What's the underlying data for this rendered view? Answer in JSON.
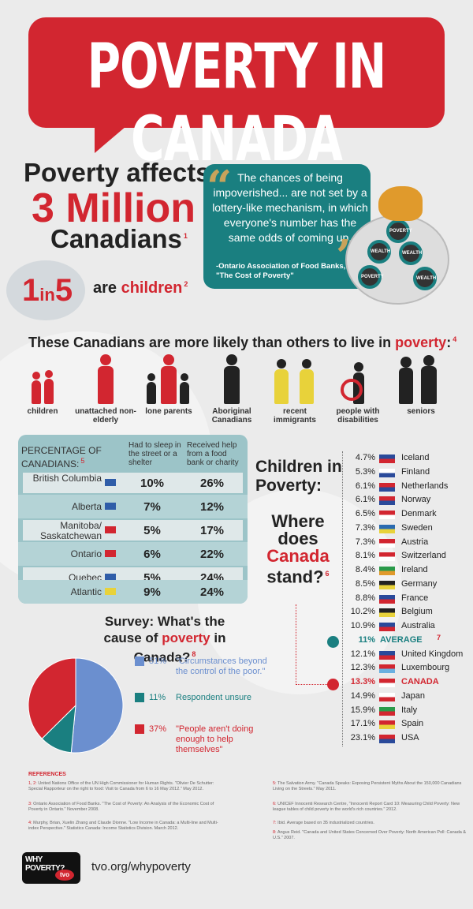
{
  "banner": {
    "title": "POVERTY IN CANADA"
  },
  "stats": {
    "line1": "Poverty affects",
    "big": "3 Million",
    "line3": "Canadians",
    "line3_sup": "1",
    "one_in": "1",
    "in_word": "in",
    "five": "5",
    "children_prefix": "are",
    "children_word": "children",
    "children_sup": "2"
  },
  "quote": {
    "text": "The chances of being impoverished... are not set by a lottery-like mechanism, in which everyone's number has the same odds of coming up.",
    "source": "-Ontario Association of Food Banks, \"The Cost of Poverty\"",
    "coins": [
      "POVERTY",
      "WEALTH",
      "WEALTH",
      "POVERTY",
      "WEALTH"
    ]
  },
  "groups": {
    "title_prefix": "These Canadians are more likely than others to live in",
    "title_word": "poverty",
    "title_sup": "4",
    "items": [
      {
        "label": "children"
      },
      {
        "label": "unattached non-elderly"
      },
      {
        "label": "lone parents"
      },
      {
        "label": "Aboriginal Canadians"
      },
      {
        "label": "recent immigrants"
      },
      {
        "label": "people with disabilities"
      },
      {
        "label": "seniors"
      }
    ]
  },
  "table": {
    "header_left": "PERCENTAGE OF CANADIANS:",
    "header_sup": "5",
    "col1": "Had to sleep in the street or a shelter",
    "col2": "Received help from a food bank or charity",
    "rows": [
      {
        "province": "British Columbia",
        "v1": "10%",
        "v2": "26%"
      },
      {
        "province": "Alberta",
        "v1": "7%",
        "v2": "12%"
      },
      {
        "province": "Manitoba/ Saskatchewan",
        "v1": "5%",
        "v2": "17%"
      },
      {
        "province": "Ontario",
        "v1": "6%",
        "v2": "22%"
      },
      {
        "province": "Quebec",
        "v1": "5%",
        "v2": "24%"
      },
      {
        "province": "Atlantic",
        "v1": "9%",
        "v2": "24%"
      }
    ]
  },
  "ranking": {
    "title": "Children in Poverty:",
    "q1": "Where",
    "q2": "does",
    "q3": "Canada",
    "q4": "stand?",
    "q_sup": "6",
    "rows": [
      {
        "pct": "4.7%",
        "country": "Iceland"
      },
      {
        "pct": "5.3%",
        "country": "Finland"
      },
      {
        "pct": "6.1%",
        "country": "Netherlands"
      },
      {
        "pct": "6.1%",
        "country": "Norway"
      },
      {
        "pct": "6.5%",
        "country": "Denmark"
      },
      {
        "pct": "7.3%",
        "country": "Sweden"
      },
      {
        "pct": "7.3%",
        "country": "Austria"
      },
      {
        "pct": "8.1%",
        "country": "Switzerland"
      },
      {
        "pct": "8.4%",
        "country": "Ireland"
      },
      {
        "pct": "8.5%",
        "country": "Germany"
      },
      {
        "pct": "8.8%",
        "country": "France"
      },
      {
        "pct": "10.2%",
        "country": "Belgium"
      },
      {
        "pct": "10.9%",
        "country": "Australia"
      },
      {
        "pct": "11%",
        "country": "AVERAGE",
        "sup": "7"
      },
      {
        "pct": "12.1%",
        "country": "United Kingdom"
      },
      {
        "pct": "12.3%",
        "country": "Luxembourg"
      },
      {
        "pct": "13.3%",
        "country": "CANADA"
      },
      {
        "pct": "14.9%",
        "country": "Japan"
      },
      {
        "pct": "15.9%",
        "country": "Italy"
      },
      {
        "pct": "17.1%",
        "country": "Spain"
      },
      {
        "pct": "23.1%",
        "country": "USA"
      }
    ]
  },
  "survey": {
    "title_line1": "Survey: What's the",
    "title_prefix": "cause of",
    "title_word": "poverty",
    "title_suffix": "in Canada?",
    "title_sup": "8",
    "colors": {
      "circumstances": "#6b8fcf",
      "unsure": "#1a7f80",
      "not_enough": "#d22630"
    },
    "items": [
      {
        "pct": "51%",
        "text": "\"Circumstances beyond the control of the poor.\""
      },
      {
        "pct": "11%",
        "text": "Respondent unsure"
      },
      {
        "pct": "37%",
        "text": "\"People aren't doing enough to help themselves\""
      }
    ]
  },
  "chart_data": {
    "type": "pie",
    "title": "Survey: What's the cause of poverty in Canada?",
    "categories": [
      "Circumstances beyond the control of the poor.",
      "Respondent unsure",
      "People aren't doing enough to help themselves"
    ],
    "values": [
      51,
      11,
      37
    ],
    "colors": [
      "#6b8fcf",
      "#1a7f80",
      "#d22630"
    ]
  },
  "references": {
    "heading": "REFERENCES",
    "left": [
      {
        "num": "1, 2:",
        "text": "United Nations Office of the UN High Commissioner for Human Rights. \"Olivier De Schutter: Special Rapporteur on the right to food: Visit to Canada from 6 to 16 May 2012.\" May 2012."
      },
      {
        "num": "3:",
        "text": "Ontario Association of Food Banks. \"The Cost of Poverty: An Analysis of the Economic Cost of Poverty in Ontario.\" November 2008."
      },
      {
        "num": "4:",
        "text": "Murphy, Brian, Xuelin Zhang and Claude Dionne. \"Low Income in Canada: a Multi-line and Multi-index Perspective.\" Statistics Canada: Income Statistics Division. March 2012."
      }
    ],
    "right": [
      {
        "num": "5:",
        "text": "The Salvation Army. \"Canada Speaks: Exposing Persistent Myths About the 150,000 Canadians Living on the Streets.\" May 2011."
      },
      {
        "num": "6:",
        "text": "UNICEF Innocenti Research Centre, \"Innocenti Report Card 10: Measuring Child Poverty: New league tables of child poverty in the world's rich countries.\" 2012."
      },
      {
        "num": "7:",
        "text": "Ibid. Average based on 35 industrialized countries."
      },
      {
        "num": "8:",
        "text": "Angus Reid. \"Canada and United States Concerned Over Poverty: North American Poll: Canada & U.S.\" 2007."
      }
    ]
  },
  "footer": {
    "logo_text": "WHY POVERTY?",
    "logo_tvo": "tvo",
    "url": "tvo.org/whypoverty"
  }
}
